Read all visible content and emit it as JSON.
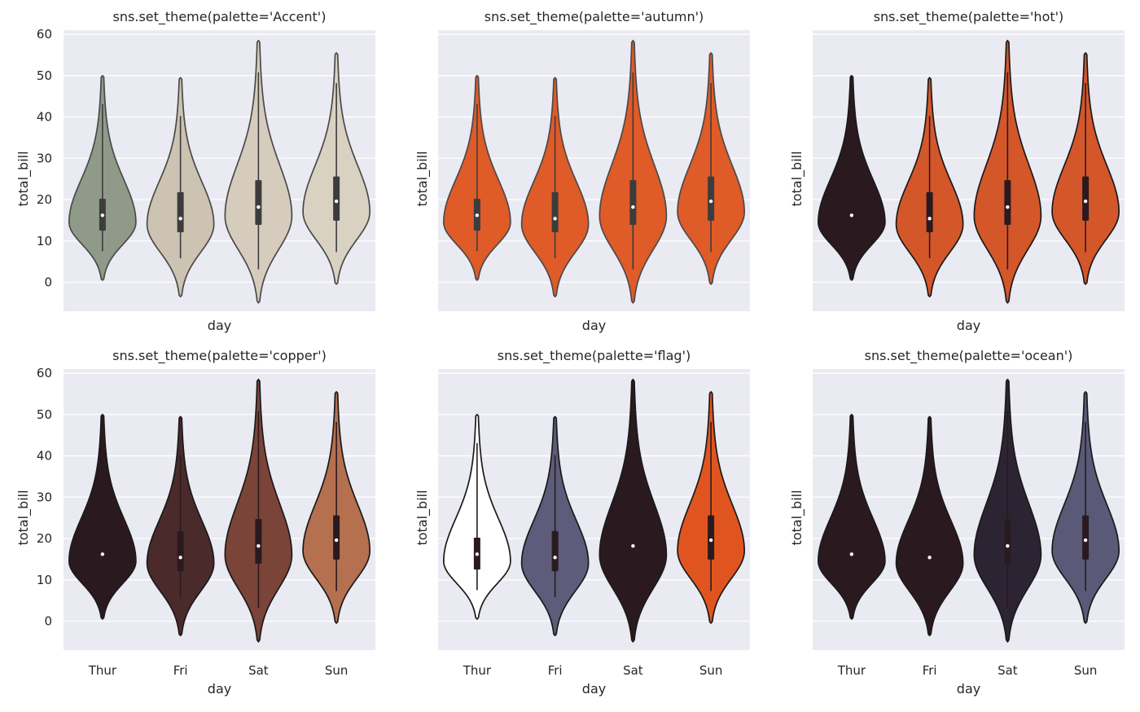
{
  "chart_data": {
    "type": "violin",
    "categories": [
      "Thur",
      "Fri",
      "Sat",
      "Sun"
    ],
    "xlabel": "day",
    "ylabel": "total_bill",
    "ylim": [
      -7,
      61
    ],
    "yticks": [
      0,
      10,
      20,
      30,
      40,
      50,
      60
    ],
    "grid": true,
    "summary": [
      {
        "day": "Thur",
        "min": 7.5,
        "q1": 12.5,
        "median": 16.2,
        "q3": 20.2,
        "max": 43.1,
        "kde_low": 0.5,
        "kde_high": 50.0,
        "mode": 14.5
      },
      {
        "day": "Fri",
        "min": 5.8,
        "q1": 12.1,
        "median": 15.4,
        "q3": 21.8,
        "max": 40.2,
        "kde_low": -3.5,
        "kde_high": 49.5,
        "mode": 14.0
      },
      {
        "day": "Sat",
        "min": 3.1,
        "q1": 13.9,
        "median": 18.2,
        "q3": 24.7,
        "max": 50.8,
        "kde_low": -5.0,
        "kde_high": 58.5,
        "mode": 16.0
      },
      {
        "day": "Sun",
        "min": 7.3,
        "q1": 14.9,
        "median": 19.6,
        "q3": 25.6,
        "max": 48.2,
        "kde_low": -0.5,
        "kde_high": 55.5,
        "mode": 17.0
      }
    ],
    "panels": [
      {
        "title": "sns.set_theme(palette='Accent')",
        "colors": [
          "#8f9b88",
          "#cdc3b2",
          "#d6ccbd",
          "#d9d2c3"
        ],
        "box_dark": [
          "#3c3c3c",
          "#3c3c3c",
          "#3c3c3c",
          "#3c3c3c"
        ],
        "inner_box": [
          true,
          true,
          true,
          true
        ],
        "edge": "#4a4a4a"
      },
      {
        "title": "sns.set_theme(palette='autumn')",
        "colors": [
          "#df5b28",
          "#df5b28",
          "#df5b28",
          "#df5b28"
        ],
        "box_dark": [
          "#3c3c3c",
          "#3c3c3c",
          "#3c3c3c",
          "#3c3c3c"
        ],
        "inner_box": [
          true,
          true,
          true,
          true
        ],
        "edge": "#4a4a4a"
      },
      {
        "title": "sns.set_theme(palette='hot')",
        "colors": [
          "#2a1a1f",
          "#d4572a",
          "#d4572a",
          "#d4572a"
        ],
        "box_dark": [
          "#2a1a1f",
          "#2a1a1f",
          "#2a1a1f",
          "#2a1a1f"
        ],
        "inner_box": [
          false,
          true,
          true,
          true
        ],
        "edge": "#1a1a1a"
      },
      {
        "title": "sns.set_theme(palette='copper')",
        "colors": [
          "#2a1a1f",
          "#4b2a2c",
          "#7a4439",
          "#b5704f"
        ],
        "box_dark": [
          "#2a1a1f",
          "#2a1a1f",
          "#2a1a1f",
          "#2a1a1f"
        ],
        "inner_box": [
          false,
          true,
          true,
          true
        ],
        "edge": "#1a1a1a"
      },
      {
        "title": "sns.set_theme(palette='flag')",
        "colors": [
          "#ffffff",
          "#5d5c7a",
          "#2a1a1f",
          "#e0551f"
        ],
        "box_dark": [
          "#2a1a1f",
          "#2a1a1f",
          "#2a1a1f",
          "#2a1a1f"
        ],
        "inner_box": [
          true,
          true,
          false,
          true
        ],
        "edge": "#1a1a1a"
      },
      {
        "title": "sns.set_theme(palette='ocean')",
        "colors": [
          "#2a1a1f",
          "#2a1a1f",
          "#2d2433",
          "#5a5a78"
        ],
        "box_dark": [
          "#2a1a1f",
          "#2a1a1f",
          "#2a1a1f",
          "#2a1a1f"
        ],
        "inner_box": [
          false,
          false,
          true,
          true
        ],
        "edge": "#1a1a1a"
      }
    ]
  }
}
